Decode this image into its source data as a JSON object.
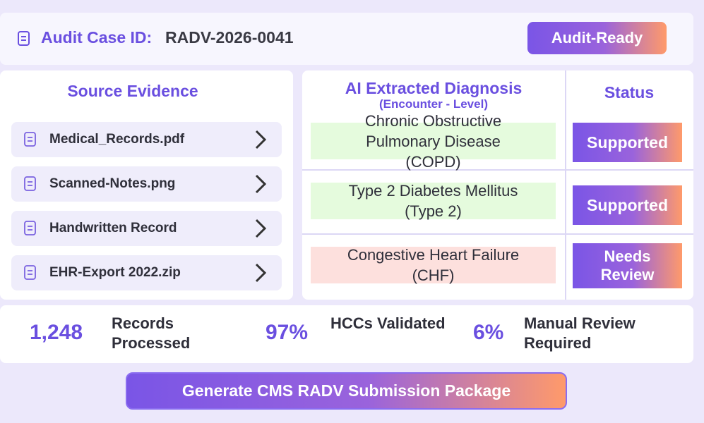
{
  "header": {
    "label": "Audit Case ID:",
    "case_id": "RADV-2026-0041",
    "badge": "Audit-Ready"
  },
  "evidence": {
    "title": "Source Evidence",
    "files": [
      "Medical_Records.pdf",
      "Scanned-Notes.png",
      "Handwritten Record",
      "EHR-Export 2022.zip"
    ]
  },
  "diagnosis": {
    "title": "AI Extracted Diagnosis",
    "subtitle": "(Encounter - Level)",
    "status_header": "Status",
    "rows": [
      {
        "text": "Chronic Obstructive Pulmonary Disease (COPD)",
        "status": "Supported",
        "ok": true
      },
      {
        "text": "Type 2 Diabetes Mellitus (Type 2)",
        "status": "Supported",
        "ok": true
      },
      {
        "text": "Congestive Heart Failure (CHF)",
        "status": "Needs Review",
        "ok": false
      }
    ]
  },
  "stats": [
    {
      "value": "1,248",
      "label": "Records Processed"
    },
    {
      "value": "97%",
      "label": "HCCs Validated"
    },
    {
      "value": "6%",
      "label": "Manual Review Required"
    }
  ],
  "button": "Generate CMS RADV Submission Package"
}
